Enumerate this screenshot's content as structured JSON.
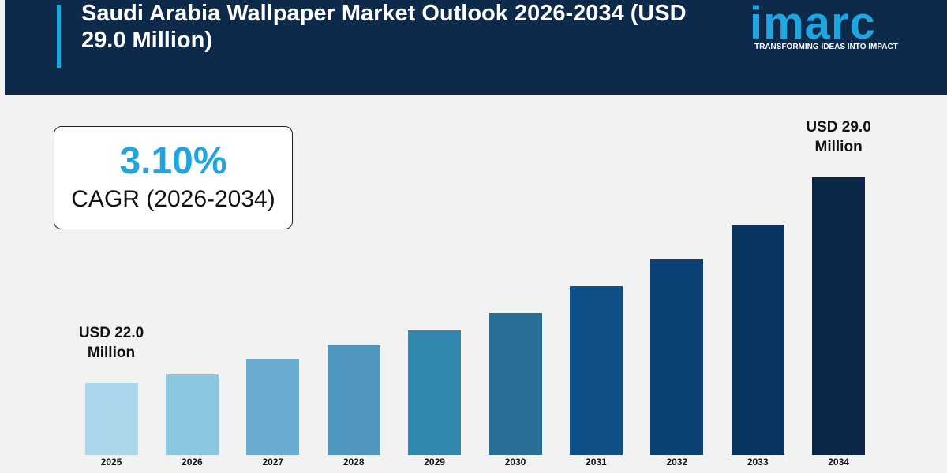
{
  "header": {
    "title": "Saudi Arabia Wallpaper Market Outlook 2026-2034 (USD 29.0 Million)",
    "logo": "imarc",
    "tagline": "TRANSFORMING IDEAS INTO IMPACT"
  },
  "cagr": {
    "value": "3.10%",
    "label": "CAGR (2026-2034)"
  },
  "chart_data": {
    "type": "bar",
    "categories": [
      "2025",
      "2026",
      "2027",
      "2028",
      "2029",
      "2030",
      "2031",
      "2032",
      "2033",
      "2034"
    ],
    "values": [
      22.0,
      22.3,
      22.8,
      23.3,
      23.8,
      24.4,
      25.3,
      26.2,
      27.4,
      29.0
    ],
    "value_labels": [
      "USD 22.0 Million",
      null,
      null,
      null,
      null,
      null,
      null,
      null,
      null,
      "USD 29.0 Million"
    ],
    "colors": [
      "#a9d6ea",
      "#8cc7e1",
      "#68add0",
      "#4f97be",
      "#3287ae",
      "#2a6f98",
      "#0f5088",
      "#0b4174",
      "#083661",
      "#0a2747"
    ]
  }
}
